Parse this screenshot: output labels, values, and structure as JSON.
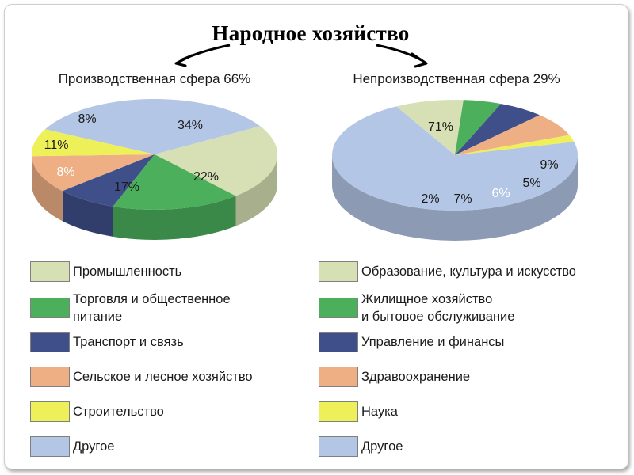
{
  "title": "Народное хозяйство",
  "colors": {
    "beige": "#d7e0b4",
    "green": "#4caf5c",
    "navy": "#3f4f8a",
    "peach": "#efaf85",
    "yellow": "#eef05a",
    "blue": "#b4c6e6",
    "arrow": "#000000"
  },
  "chart_data": [
    {
      "type": "pie",
      "title": "Производственная сфера 66%",
      "slices": [
        {
          "label": "34%",
          "value": 34,
          "category": "Другое",
          "color": "blue"
        },
        {
          "label": "22%",
          "value": 22,
          "category": "Промышленность",
          "color": "beige"
        },
        {
          "label": "17%",
          "value": 17,
          "category": "Торговля и общественное питание",
          "color": "green"
        },
        {
          "label": "8%",
          "value": 8,
          "category": "Транспорт и связь",
          "color": "navy"
        },
        {
          "label": "11%",
          "value": 11,
          "category": "Сельское и лесное хозяйство",
          "color": "peach"
        },
        {
          "label": "8%",
          "value": 8,
          "category": "Строительство",
          "color": "yellow"
        }
      ]
    },
    {
      "type": "pie",
      "title": "Непроизводственная сфера 29%",
      "slices": [
        {
          "label": "71%",
          "value": 71,
          "category": "Другое",
          "color": "blue"
        },
        {
          "label": "9%",
          "value": 9,
          "category": "Образование, культура и искусство",
          "color": "beige"
        },
        {
          "label": "5%",
          "value": 5,
          "category": "Жилищное хозяйство и бытовое обслуживание",
          "color": "green"
        },
        {
          "label": "6%",
          "value": 6,
          "category": "Управление и финансы",
          "color": "navy"
        },
        {
          "label": "7%",
          "value": 7,
          "category": "Здравоохранение",
          "color": "peach"
        },
        {
          "label": "2%",
          "value": 2,
          "category": "Наука",
          "color": "yellow"
        }
      ]
    }
  ],
  "legend_left": [
    {
      "text": "Промышленность",
      "color": "beige"
    },
    {
      "text": "Торговля и общественное\nпитание",
      "color": "green"
    },
    {
      "text": "Транспорт и связь",
      "color": "navy"
    },
    {
      "text": "Сельское и лесное хозяйство",
      "color": "peach"
    },
    {
      "text": "Строительство",
      "color": "yellow"
    },
    {
      "text": "Другое",
      "color": "blue"
    }
  ],
  "legend_right": [
    {
      "text": "Образование, культура и искусство",
      "color": "beige"
    },
    {
      "text": "Жилищное хозяйство\nи бытовое обслуживание",
      "color": "green"
    },
    {
      "text": "Управление и финансы",
      "color": "navy"
    },
    {
      "text": "Здравоохранение",
      "color": "peach"
    },
    {
      "text": "Наука",
      "color": "yellow"
    },
    {
      "text": "Другое",
      "color": "blue"
    }
  ]
}
